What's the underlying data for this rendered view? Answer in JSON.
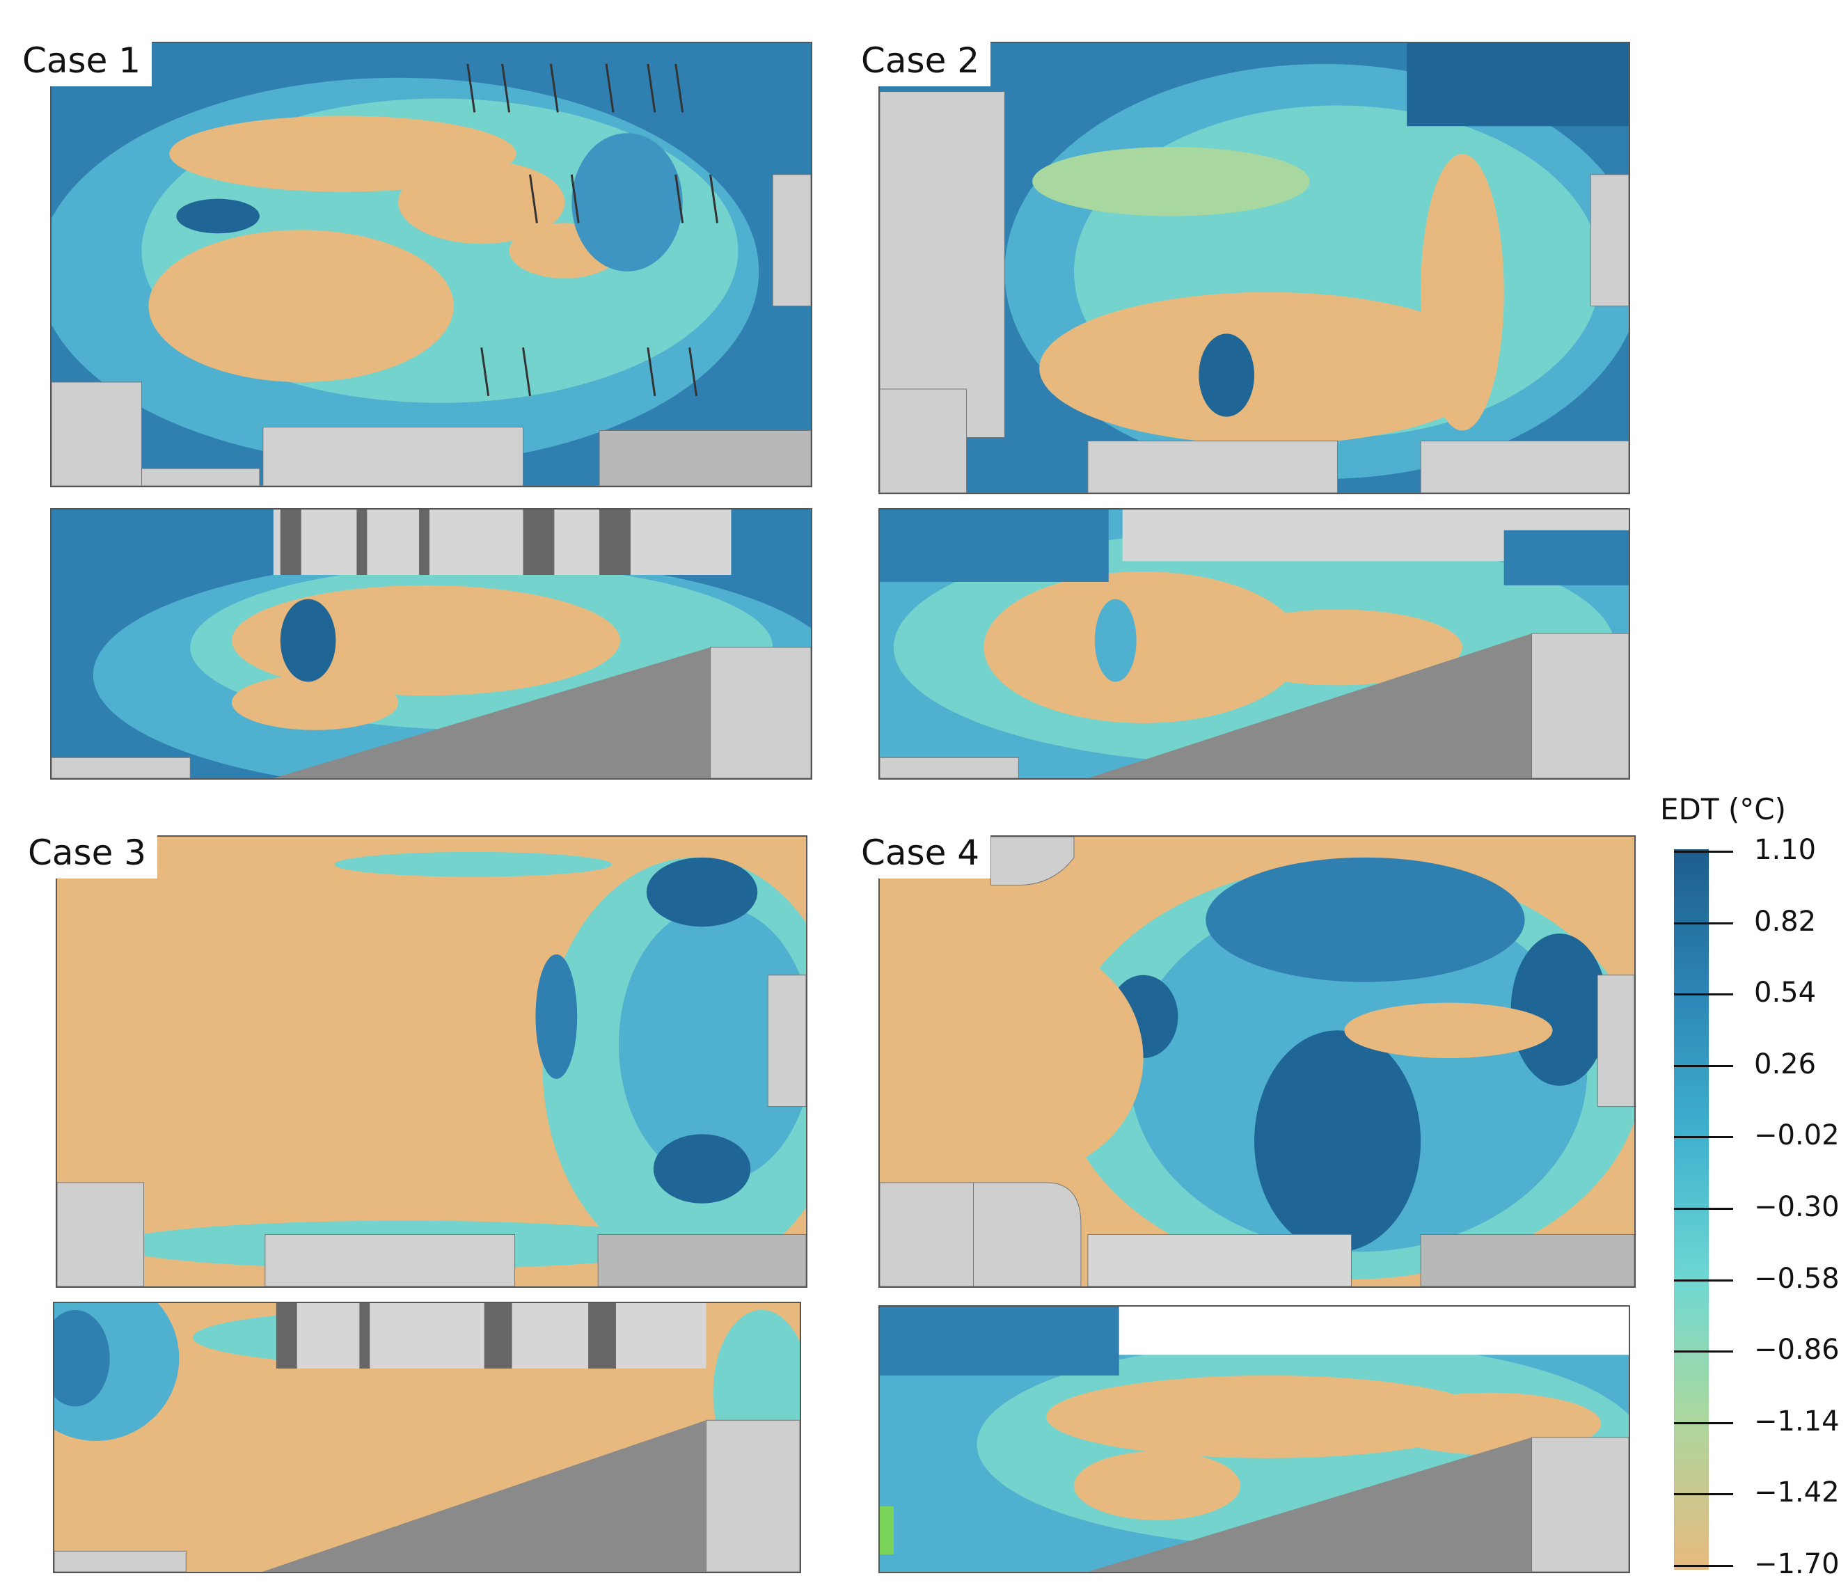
{
  "cases": [
    {
      "label": "Case 1"
    },
    {
      "label": "Case 2"
    },
    {
      "label": "Case 3"
    },
    {
      "label": "Case 4"
    }
  ],
  "colorbar": {
    "title": "EDT (°C)",
    "ticks": [
      "1.10",
      "0.82",
      "0.54",
      "0.26",
      "−0.02",
      "−0.30",
      "−0.58",
      "−0.86",
      "−1.14",
      "−1.42",
      "−1.70"
    ],
    "colors": [
      "#1c5d8c",
      "#2d86b6",
      "#3fb2cf",
      "#6fd8d2",
      "#a8d8a0",
      "#e8b97e"
    ]
  }
}
